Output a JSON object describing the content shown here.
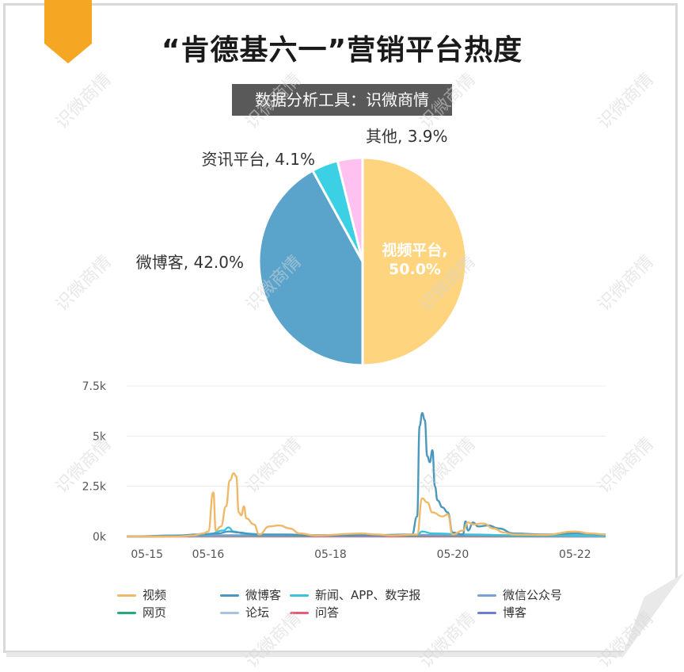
{
  "header": {
    "title": "“肯德基六一”营销平台热度",
    "tool_label": "数据分析工具：识微商情"
  },
  "watermark_text": "识微商情",
  "colors": {
    "accent": "#f5a623",
    "frame": "#d9d9d9",
    "label_bg": "#595959"
  },
  "chart_data": [
    {
      "type": "pie",
      "title": "",
      "slices": [
        {
          "name": "视频平台",
          "value": 50.0,
          "label": "视频平台,\n50.0%",
          "label_line1": "视频平台,",
          "label_line2": "50.0%",
          "color": "#fed47e"
        },
        {
          "name": "微博客",
          "value": 42.0,
          "label": "微博客, 42.0%",
          "color": "#5aa4cc"
        },
        {
          "name": "资讯平台",
          "value": 4.1,
          "label": "资讯平台, 4.1%",
          "color": "#3cd0e5"
        },
        {
          "name": "其他",
          "value": 3.9,
          "label": "其他, 3.9%",
          "color": "#ffc2f0"
        }
      ]
    },
    {
      "type": "line",
      "title": "",
      "xlabel": "",
      "ylabel": "",
      "xlim": [
        "05-14 16:00",
        "05-22 12:00"
      ],
      "ylim": [
        0,
        7500
      ],
      "grid": true,
      "legend_position": "bottom",
      "x_ticks": [
        "05-15",
        "05-16",
        "05-18",
        "05-20",
        "05-22"
      ],
      "y_ticks": [
        "0k",
        "2.5k",
        "5k",
        "7.5k"
      ],
      "series": [
        {
          "name": "视频",
          "color": "#f0b96a",
          "points": [
            [
              "05-14 16:00",
              0
            ],
            [
              "05-15 12:00",
              0
            ],
            [
              "05-15 18:00",
              50
            ],
            [
              "05-15 22:00",
              150
            ],
            [
              "05-16 00:00",
              250
            ],
            [
              "05-16 02:00",
              2200
            ],
            [
              "05-16 03:00",
              300
            ],
            [
              "05-16 05:00",
              500
            ],
            [
              "05-16 07:00",
              1500
            ],
            [
              "05-16 08:30",
              2800
            ],
            [
              "05-16 10:00",
              3150
            ],
            [
              "05-16 11:00",
              3000
            ],
            [
              "05-16 12:00",
              1200
            ],
            [
              "05-16 13:00",
              1050
            ],
            [
              "05-16 14:00",
              1500
            ],
            [
              "05-16 15:00",
              900
            ],
            [
              "05-16 18:00",
              600
            ],
            [
              "05-16 20:00",
              100
            ],
            [
              "05-17 00:00",
              500
            ],
            [
              "05-17 04:00",
              550
            ],
            [
              "05-17 08:00",
              400
            ],
            [
              "05-17 12:00",
              150
            ],
            [
              "05-17 18:00",
              50
            ],
            [
              "05-18 12:00",
              150
            ],
            [
              "05-18 18:00",
              100
            ],
            [
              "05-19 00:00",
              50
            ],
            [
              "05-19 10:00",
              100
            ],
            [
              "05-19 12:00",
              1900
            ],
            [
              "05-19 14:00",
              1700
            ],
            [
              "05-19 16:00",
              1200
            ],
            [
              "05-19 20:00",
              1000
            ],
            [
              "05-19 22:00",
              1100
            ],
            [
              "05-20 00:00",
              100
            ],
            [
              "05-20 04:00",
              300
            ],
            [
              "05-20 06:00",
              700
            ],
            [
              "05-20 08:00",
              600
            ],
            [
              "05-20 12:00",
              650
            ],
            [
              "05-20 16:00",
              400
            ],
            [
              "05-20 20:00",
              200
            ],
            [
              "05-21 00:00",
              100
            ],
            [
              "05-21 12:00",
              80
            ],
            [
              "05-22 00:00",
              250
            ],
            [
              "05-22 06:00",
              150
            ],
            [
              "05-22 12:00",
              100
            ]
          ]
        },
        {
          "name": "微博客",
          "color": "#4a98bd",
          "points": [
            [
              "05-14 16:00",
              0
            ],
            [
              "05-15 12:00",
              50
            ],
            [
              "05-15 20:00",
              100
            ],
            [
              "05-16 04:00",
              150
            ],
            [
              "05-16 08:00",
              250
            ],
            [
              "05-16 12:00",
              200
            ],
            [
              "05-16 18:00",
              100
            ],
            [
              "05-17 06:00",
              100
            ],
            [
              "05-17 18:00",
              50
            ],
            [
              "05-18 12:00",
              50
            ],
            [
              "05-19 08:00",
              100
            ],
            [
              "05-19 10:00",
              1000
            ],
            [
              "05-19 11:00",
              5500
            ],
            [
              "05-19 12:00",
              6150
            ],
            [
              "05-19 13:00",
              5800
            ],
            [
              "05-19 14:00",
              4000
            ],
            [
              "05-19 15:00",
              3700
            ],
            [
              "05-19 16:00",
              4300
            ],
            [
              "05-19 17:00",
              2500
            ],
            [
              "05-19 18:00",
              1800
            ],
            [
              "05-19 20:00",
              1450
            ],
            [
              "05-19 22:00",
              1200
            ],
            [
              "05-20 00:00",
              200
            ],
            [
              "05-20 04:00",
              100
            ],
            [
              "05-20 05:00",
              750
            ],
            [
              "05-20 06:00",
              300
            ],
            [
              "05-20 08:00",
              700
            ],
            [
              "05-20 10:00",
              500
            ],
            [
              "05-20 14:00",
              550
            ],
            [
              "05-20 18:00",
              400
            ],
            [
              "05-21 00:00",
              150
            ],
            [
              "05-21 12:00",
              100
            ],
            [
              "05-22 00:00",
              150
            ],
            [
              "05-22 12:00",
              100
            ]
          ]
        },
        {
          "name": "新闻、APP、数字报",
          "color": "#3cc3dc",
          "points": [
            [
              "05-14 16:00",
              0
            ],
            [
              "05-15 12:00",
              20
            ],
            [
              "05-16 00:00",
              100
            ],
            [
              "05-16 06:00",
              300
            ],
            [
              "05-16 08:00",
              450
            ],
            [
              "05-16 10:00",
              250
            ],
            [
              "05-16 14:00",
              150
            ],
            [
              "05-17 00:00",
              80
            ],
            [
              "05-18 12:00",
              40
            ],
            [
              "05-19 10:00",
              80
            ],
            [
              "05-19 12:00",
              250
            ],
            [
              "05-19 16:00",
              150
            ],
            [
              "05-20 06:00",
              100
            ],
            [
              "05-21 00:00",
              60
            ],
            [
              "05-22 12:00",
              40
            ]
          ]
        },
        {
          "name": "微信公众号",
          "color": "#7aa2d4",
          "points": [
            [
              "05-14 16:00",
              0
            ],
            [
              "05-16 06:00",
              60
            ],
            [
              "05-19 12:00",
              80
            ],
            [
              "05-22 12:00",
              30
            ]
          ]
        },
        {
          "name": "网页",
          "color": "#2aa87a",
          "points": [
            [
              "05-14 16:00",
              0
            ],
            [
              "05-16 06:00",
              40
            ],
            [
              "05-19 12:00",
              50
            ],
            [
              "05-22 12:00",
              20
            ]
          ]
        },
        {
          "name": "论坛",
          "color": "#a7c3e0",
          "points": [
            [
              "05-14 16:00",
              0
            ],
            [
              "05-16 08:00",
              30
            ],
            [
              "05-19 12:00",
              40
            ],
            [
              "05-22 12:00",
              10
            ]
          ]
        },
        {
          "name": "问答",
          "color": "#e85a7a",
          "points": [
            [
              "05-14 16:00",
              0
            ],
            [
              "05-22 12:00",
              0
            ]
          ]
        },
        {
          "name": "博客",
          "color": "#6a7fd8",
          "points": [
            [
              "05-14 16:00",
              0
            ],
            [
              "05-16 08:00",
              20
            ],
            [
              "05-22 12:00",
              0
            ]
          ]
        }
      ]
    }
  ]
}
